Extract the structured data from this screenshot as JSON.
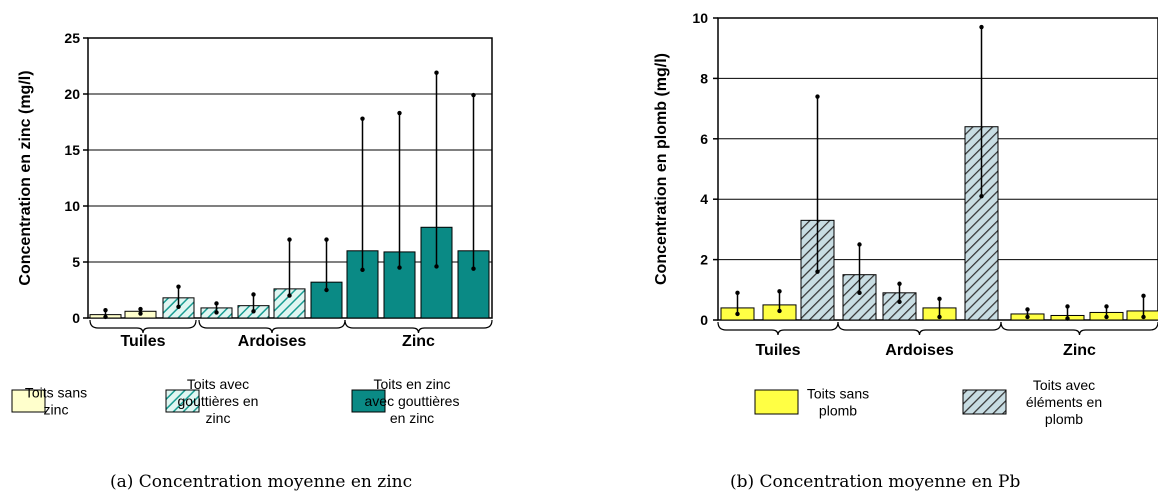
{
  "chart_data": [
    {
      "type": "bar",
      "ylabel": "Concentration en zinc (mg/l)",
      "ylim": [
        0,
        25
      ],
      "yticks": [
        0,
        5,
        10,
        15,
        20,
        25
      ],
      "grid": true,
      "groups": [
        "Tuiles",
        "Ardoises",
        "Zinc"
      ],
      "series": [
        {
          "name": "Toits sans zinc",
          "legend_lines": [
            "Toits sans",
            "zinc"
          ],
          "color": "#ffffcc",
          "pattern": "none"
        },
        {
          "name": "Toits avec gouttières en zinc",
          "legend_lines": [
            "Toits avec",
            "gouttières en",
            "zinc"
          ],
          "color": "#e0f6f2",
          "pattern": "hatch-teal"
        },
        {
          "name": "Toits en zinc avec gouttières en zinc",
          "legend_lines": [
            "Toits en zinc",
            "avec gouttières",
            "en zinc"
          ],
          "color": "#0a8a85",
          "pattern": "none"
        }
      ],
      "bars": [
        {
          "group": "Tuiles",
          "series": 0,
          "value": 0.3,
          "err_low": 0.1,
          "err_high": 0.7
        },
        {
          "group": "Tuiles",
          "series": 0,
          "value": 0.6,
          "err_low": 0.4,
          "err_high": 0.8
        },
        {
          "group": "Tuiles",
          "series": 1,
          "value": 1.8,
          "err_low": 1.0,
          "err_high": 2.8
        },
        {
          "group": "Ardoises",
          "series": 1,
          "value": 0.9,
          "err_low": 0.5,
          "err_high": 1.3
        },
        {
          "group": "Ardoises",
          "series": 1,
          "value": 1.1,
          "err_low": 0.6,
          "err_high": 2.1
        },
        {
          "group": "Ardoises",
          "series": 1,
          "value": 2.6,
          "err_low": 2.0,
          "err_high": 7.0
        },
        {
          "group": "Ardoises",
          "series": 2,
          "value": 3.2,
          "err_low": 2.5,
          "err_high": 7.0
        },
        {
          "group": "Zinc",
          "series": 2,
          "value": 6.0,
          "err_low": 4.3,
          "err_high": 17.8
        },
        {
          "group": "Zinc",
          "series": 2,
          "value": 5.9,
          "err_low": 4.5,
          "err_high": 18.3
        },
        {
          "group": "Zinc",
          "series": 2,
          "value": 8.1,
          "err_low": 4.6,
          "err_high": 21.9
        },
        {
          "group": "Zinc",
          "series": 2,
          "value": 6.0,
          "err_low": 4.4,
          "err_high": 19.9
        }
      ]
    },
    {
      "type": "bar",
      "ylabel": "Concentration en plomb (mg/l)",
      "ylim": [
        0,
        10
      ],
      "yticks": [
        0,
        2,
        4,
        6,
        8,
        10
      ],
      "grid": true,
      "groups": [
        "Tuiles",
        "Ardoises",
        "Zinc"
      ],
      "series": [
        {
          "name": "Toits sans plomb",
          "legend_lines": [
            "Toits sans",
            "plomb"
          ],
          "color": "#ffff44",
          "pattern": "none"
        },
        {
          "name": "Toits avec éléments en plomb",
          "legend_lines": [
            "Toits avec",
            "éléments en",
            "plomb"
          ],
          "color": "#c8dde3",
          "pattern": "hatch-dark"
        }
      ],
      "bars": [
        {
          "group": "Tuiles",
          "series": 0,
          "value": 0.4,
          "err_low": 0.2,
          "err_high": 0.9
        },
        {
          "group": "Tuiles",
          "series": 0,
          "value": 0.5,
          "err_low": 0.3,
          "err_high": 0.95
        },
        {
          "group": "Tuiles",
          "series": 1,
          "value": 3.3,
          "err_low": 1.6,
          "err_high": 7.4
        },
        {
          "group": "Ardoises",
          "series": 1,
          "value": 1.5,
          "err_low": 0.9,
          "err_high": 2.5
        },
        {
          "group": "Ardoises",
          "series": 1,
          "value": 0.9,
          "err_low": 0.6,
          "err_high": 1.2
        },
        {
          "group": "Ardoises",
          "series": 0,
          "value": 0.4,
          "err_low": 0.1,
          "err_high": 0.7
        },
        {
          "group": "Ardoises",
          "series": 1,
          "value": 6.4,
          "err_low": 4.1,
          "err_high": 9.7
        },
        {
          "group": "Zinc",
          "series": 0,
          "value": 0.2,
          "err_low": 0.1,
          "err_high": 0.35
        },
        {
          "group": "Zinc",
          "series": 0,
          "value": 0.15,
          "err_low": 0.05,
          "err_high": 0.45
        },
        {
          "group": "Zinc",
          "series": 0,
          "value": 0.25,
          "err_low": 0.1,
          "err_high": 0.45
        },
        {
          "group": "Zinc",
          "series": 0,
          "value": 0.3,
          "err_low": 0.1,
          "err_high": 0.8
        }
      ]
    }
  ],
  "captions": [
    "(a) Concentration moyenne en zinc",
    "(b) Concentration moyenne en Pb"
  ]
}
